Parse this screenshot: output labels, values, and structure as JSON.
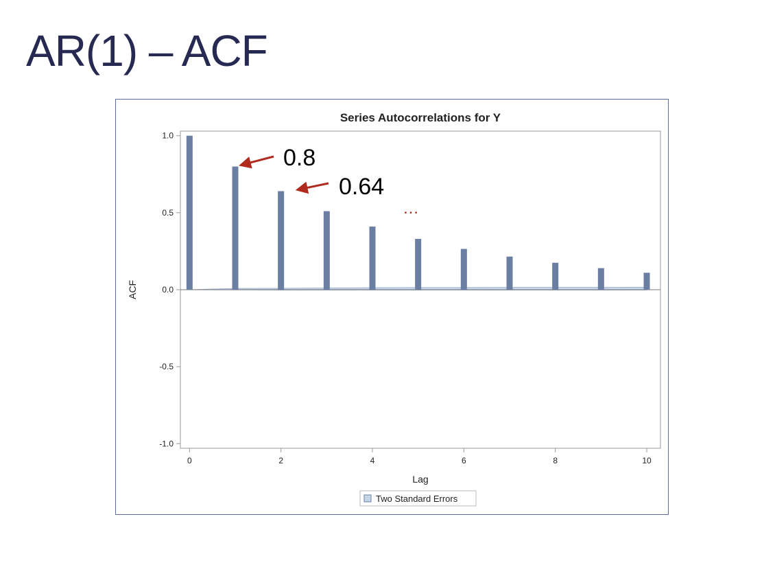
{
  "slide": {
    "title": "AR(1) – ACF",
    "title_color": "#262a52"
  },
  "chart_data": {
    "type": "bar",
    "title": "Series Autocorrelations for Y",
    "xlabel": "Lag",
    "ylabel": "ACF",
    "x": [
      0,
      1,
      2,
      3,
      4,
      5,
      6,
      7,
      8,
      9,
      10
    ],
    "values": [
      1.0,
      0.8,
      0.64,
      0.51,
      0.41,
      0.33,
      0.265,
      0.215,
      0.175,
      0.14,
      0.11
    ],
    "xlim": [
      -0.2,
      10.3
    ],
    "ylim": [
      -1.03,
      1.03
    ],
    "xticks": [
      0,
      2,
      4,
      6,
      8,
      10
    ],
    "xtick_labels": [
      "0",
      "2",
      "4",
      "6",
      "8",
      "10"
    ],
    "yticks": [
      -1.0,
      -0.5,
      0.0,
      0.5,
      1.0
    ],
    "ytick_labels": [
      "-1.0",
      "-0.5",
      "0.0",
      "0.5",
      "1.0"
    ],
    "grid": false,
    "std_error_band": {
      "name": "Two Standard Errors",
      "x": [
        0,
        1,
        2,
        3,
        4,
        5,
        6,
        7,
        8,
        9,
        10
      ],
      "upper": [
        0.0,
        0.008,
        0.009,
        0.011,
        0.013,
        0.014,
        0.014,
        0.015,
        0.015,
        0.015,
        0.016
      ],
      "lower": [
        0.0,
        -0.001,
        -0.002,
        -0.002,
        -0.002,
        -0.002,
        -0.002,
        -0.002,
        -0.002,
        -0.002,
        -0.002
      ]
    },
    "legend": {
      "position": "bottom",
      "entries": [
        "Two Standard Errors"
      ]
    },
    "annotations": [
      {
        "text": "0.8",
        "target_x": 1,
        "target_y": 0.8,
        "color": "#b02a1e"
      },
      {
        "text": "0.64",
        "target_x": 2,
        "target_y": 0.64,
        "color": "#b02a1e"
      },
      {
        "text": "…",
        "target_x": 4.7,
        "target_y": 0.53,
        "color": "#b02a1e"
      }
    ],
    "colors": {
      "bar": "#6b7fa3",
      "band_fill": "#c8d6ea",
      "band_line": "#9fb3cf",
      "annotation": "#b02a1e",
      "axis": "#999999",
      "text": "#222222"
    }
  }
}
